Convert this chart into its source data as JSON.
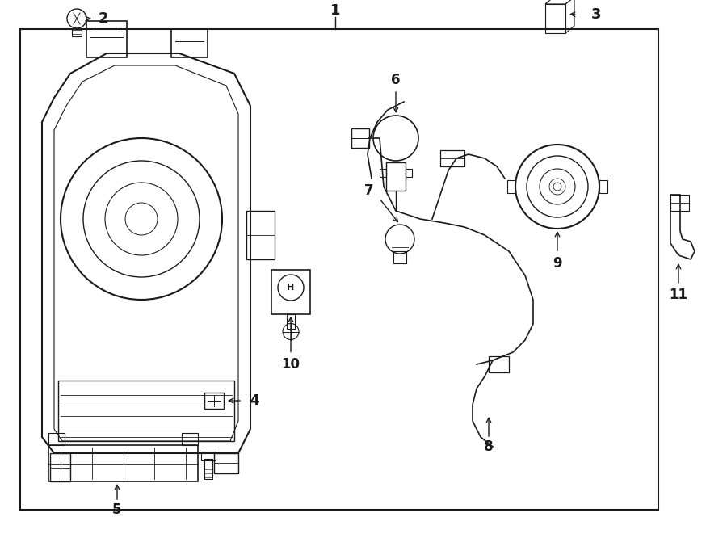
{
  "bg": "#f0f0f0",
  "lc": "#1a1a1a",
  "fig_w": 9.0,
  "fig_h": 6.61,
  "dpi": 100
}
